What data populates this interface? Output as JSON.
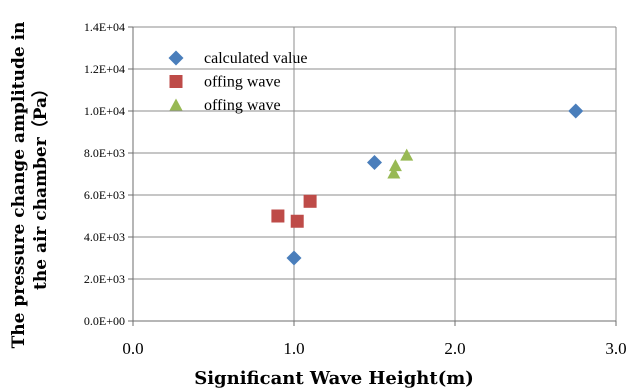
{
  "chart_data": {
    "type": "scatter",
    "xlabel": "Significant Wave Height(m)",
    "ylabel_line1": "The pressure change amplitude in",
    "ylabel_line2": "the air chamber（Pa）",
    "xlim": [
      0,
      3
    ],
    "ylim": [
      0,
      14000
    ],
    "x_ticks": [
      0,
      1,
      2,
      3
    ],
    "x_tick_labels": [
      "0.0",
      "1.0",
      "2.0",
      "3.0"
    ],
    "y_ticks": [
      0,
      2000,
      4000,
      6000,
      8000,
      10000,
      12000,
      14000
    ],
    "y_tick_labels": [
      "0.0E+00",
      "2.0E+03",
      "4.0E+03",
      "6.0E+03",
      "8.0E+03",
      "1.0E+04",
      "1.2E+04",
      "1.4E+04"
    ],
    "grid": "vertical and horizontal",
    "legend_position": "top-left",
    "series": [
      {
        "name": "calculated value",
        "marker": "diamond",
        "color": "#4A7EBB",
        "points": [
          [
            1.0,
            3000
          ],
          [
            1.5,
            7550
          ],
          [
            2.75,
            10000
          ]
        ]
      },
      {
        "name": "offing wave",
        "marker": "square",
        "color": "#BE4B48",
        "points": [
          [
            0.9,
            5000
          ],
          [
            1.02,
            4750
          ],
          [
            1.1,
            5700
          ]
        ]
      },
      {
        "name": "offing wave",
        "marker": "triangle",
        "color": "#98B954",
        "points": [
          [
            1.62,
            7050
          ],
          [
            1.63,
            7400
          ],
          [
            1.7,
            7900
          ]
        ]
      }
    ]
  }
}
